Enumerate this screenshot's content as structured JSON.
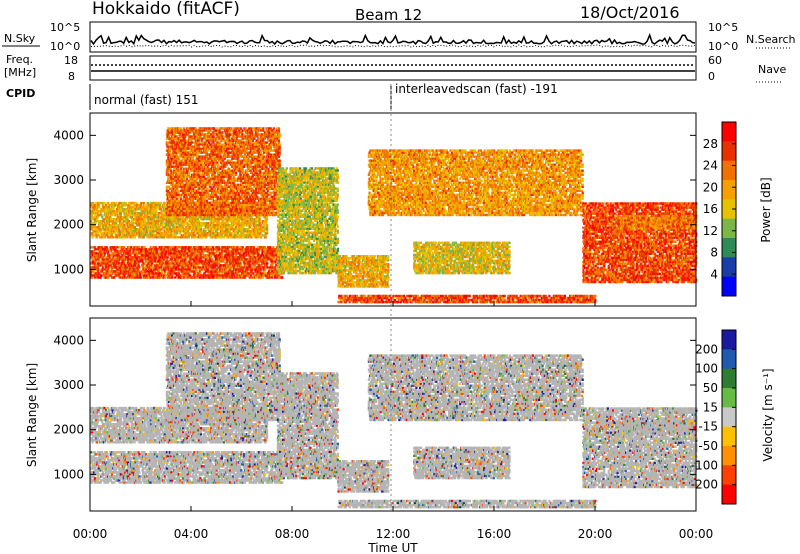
{
  "header": {
    "title": "Hokkaido (fitACF)",
    "beam": "Beam 12",
    "date": "18/Oct/2016"
  },
  "strips": {
    "nsky_label": "N.Sky",
    "nsearch_label": "N.Search",
    "freq_label": "Freq.",
    "freq_unit": "[MHz]",
    "nave_label": "Nave",
    "cpid_label": "CPID",
    "nsky_ticks": [
      "10^5",
      "10^0"
    ],
    "freq_ticks_left": [
      "18",
      "8"
    ],
    "nave_ticks_right": [
      "60",
      "0"
    ],
    "cpid_segments": [
      {
        "name": "normal (fast) 151",
        "start_hour": 0
      },
      {
        "name": "interleavedscan (fast) -191",
        "start_hour": 12
      }
    ]
  },
  "colors": {
    "power_scale": [
      "#0000ff",
      "#1a3ca8",
      "#2e8b57",
      "#7ab648",
      "#e6c200",
      "#f5a000",
      "#f07000",
      "#e83000",
      "#ff0000"
    ],
    "velocity_scale": [
      "#1a1aa0",
      "#1f5ab0",
      "#2e7d32",
      "#66bb44",
      "#c8c8c8",
      "#ffc000",
      "#ff9000",
      "#ff4000",
      "#ff0000"
    ],
    "ground_scatter": "#b4b4b4"
  },
  "chart_data": {
    "type": "heatmap",
    "x": {
      "label": "Time UT",
      "ticks": [
        "00:00",
        "04:00",
        "08:00",
        "12:00",
        "16:00",
        "20:00",
        "00:00"
      ],
      "range_hours": [
        0,
        24
      ]
    },
    "y": {
      "label": "Slant Range [km]",
      "ticks": [
        "1000",
        "2000",
        "3000",
        "4000"
      ],
      "range_km": [
        180,
        4500
      ]
    },
    "power_colorbar": {
      "label": "Power [dB]",
      "ticks": [
        "4",
        "8",
        "12",
        "16",
        "20",
        "24",
        "28"
      ],
      "range": [
        0,
        32
      ]
    },
    "velocity_colorbar": {
      "label": "Velocity [m s⁻¹]",
      "ticks": [
        "200",
        "100",
        "50",
        "15",
        "-15",
        "-50",
        "-100",
        "-200"
      ]
    },
    "scatter_bands": [
      {
        "start_hour": 0.0,
        "end_hour": 7.6,
        "range_lo_km": 800,
        "range_hi_km": 1500,
        "power_db": 28
      },
      {
        "start_hour": 0.0,
        "end_hour": 7.0,
        "range_lo_km": 1700,
        "range_hi_km": 2500,
        "power_db": 20
      },
      {
        "start_hour": 3.0,
        "end_hour": 7.5,
        "range_lo_km": 2200,
        "range_hi_km": 4200,
        "power_db": 26
      },
      {
        "start_hour": 7.4,
        "end_hour": 9.8,
        "range_lo_km": 900,
        "range_hi_km": 3300,
        "power_db": 16
      },
      {
        "start_hour": 9.8,
        "end_hour": 11.8,
        "range_lo_km": 600,
        "range_hi_km": 1300,
        "power_db": 20
      },
      {
        "start_hour": 9.8,
        "end_hour": 20.0,
        "range_lo_km": 250,
        "range_hi_km": 450,
        "power_db": 28
      },
      {
        "start_hour": 11.0,
        "end_hour": 19.5,
        "range_lo_km": 2200,
        "range_hi_km": 3700,
        "power_db": 22
      },
      {
        "start_hour": 12.8,
        "end_hour": 16.6,
        "range_lo_km": 900,
        "range_hi_km": 1600,
        "power_db": 18
      },
      {
        "start_hour": 19.5,
        "end_hour": 24.0,
        "range_lo_km": 700,
        "range_hi_km": 2500,
        "power_db": 28
      },
      {
        "start_hour": 20.8,
        "end_hour": 24.0,
        "range_lo_km": 1900,
        "range_hi_km": 2200,
        "power_db": 24
      }
    ]
  }
}
